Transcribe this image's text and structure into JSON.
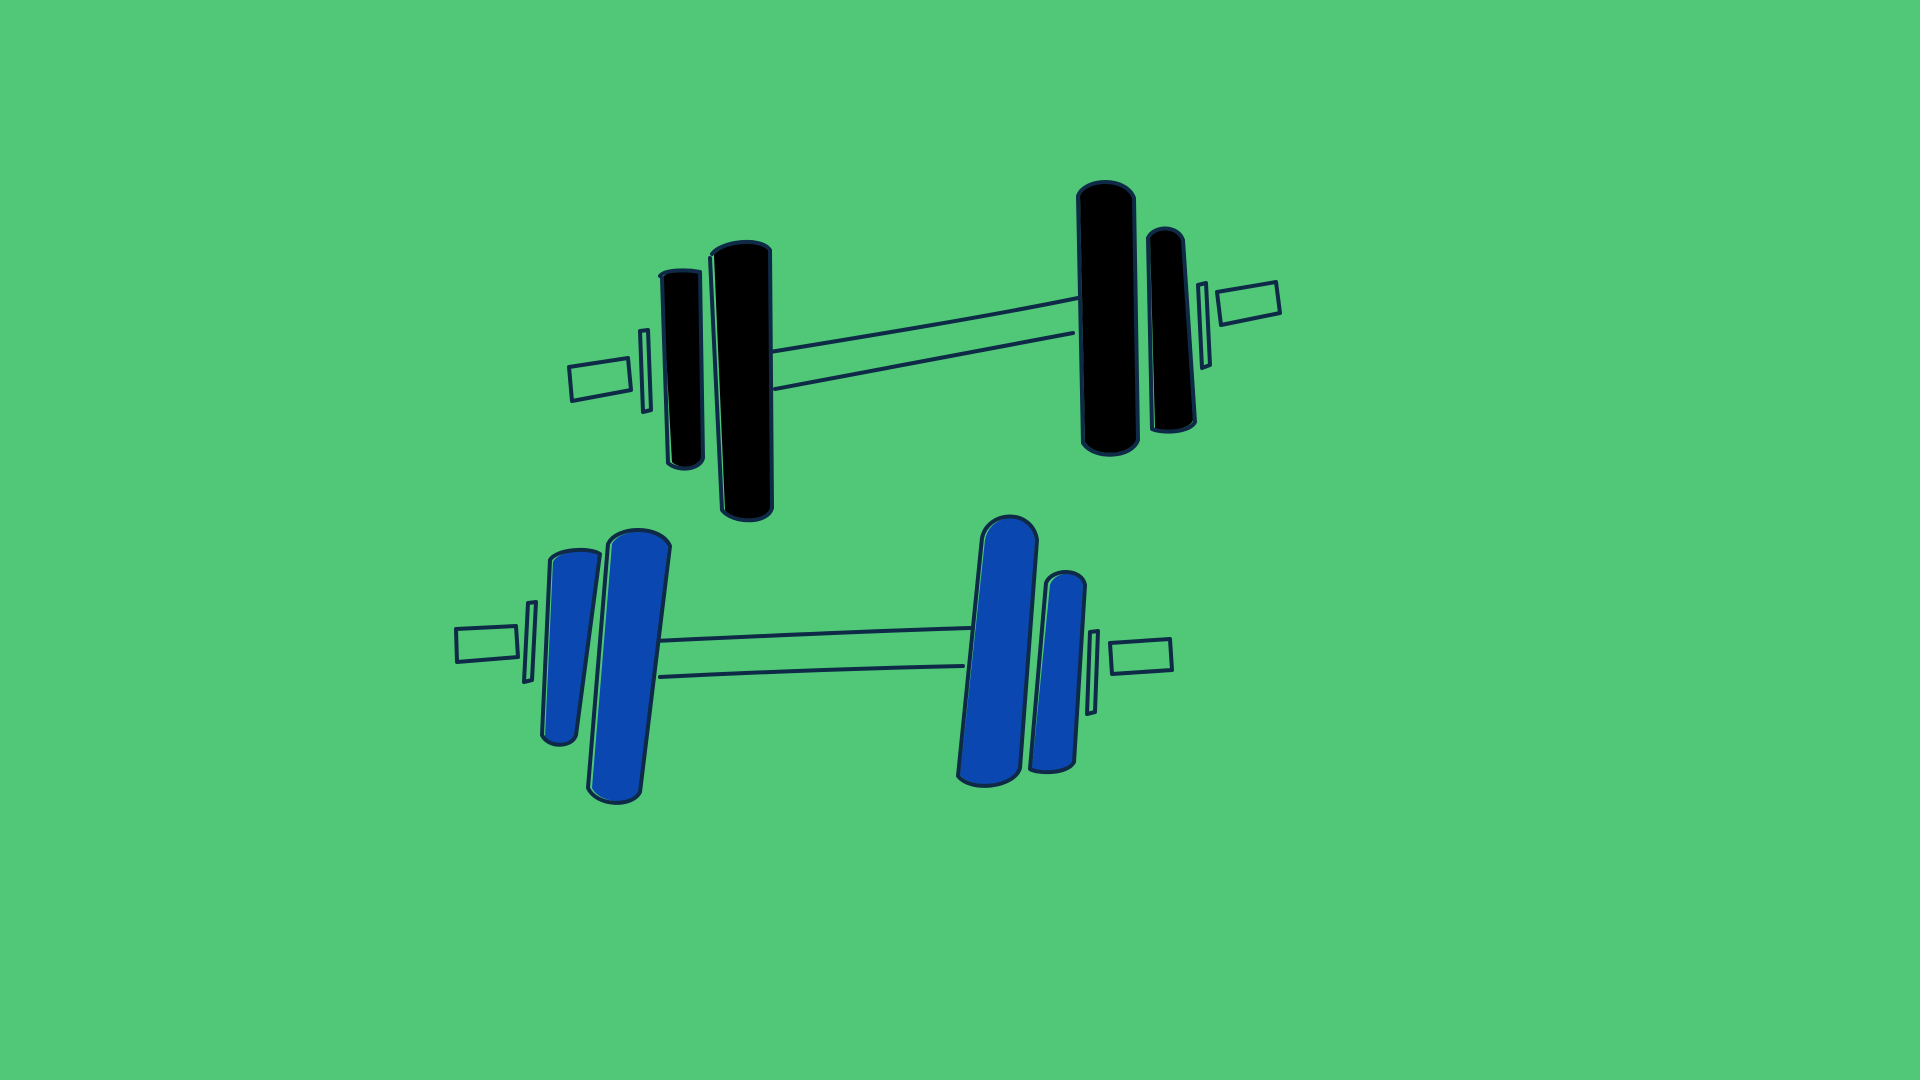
{
  "scene": {
    "background_color": "#50c878",
    "outline_color": "#0e2a47"
  },
  "barbells": [
    {
      "name": "black-barbell",
      "plate_color": "#000000"
    },
    {
      "name": "blue-barbell",
      "plate_color": "#0a47b0"
    }
  ]
}
